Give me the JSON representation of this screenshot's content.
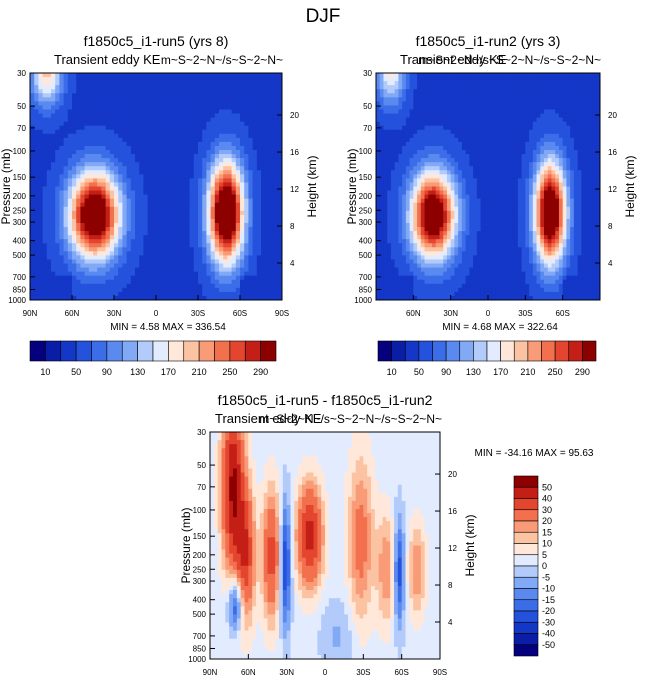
{
  "figure": {
    "title": "DJF"
  },
  "chart_data": [
    {
      "type": "heatmap",
      "title": "f1850c5_i1-run5 (yrs 8)",
      "subtitle_left": "Transient eddy KE",
      "subtitle_right": "m~S~2~N~/s~S~2~N~",
      "ylabel": "Pressure (mb)",
      "ylabel_right": "Height (km)",
      "xticks": [
        "90N",
        "60N",
        "30N",
        "0",
        "30S",
        "60S",
        "90S"
      ],
      "yticks": [
        "30",
        "50",
        "70",
        "100",
        "150",
        "200",
        "250",
        "300",
        "400",
        "500",
        "700",
        "850",
        "1000"
      ],
      "height_ticks": [
        "4",
        "8",
        "12",
        "16",
        "20"
      ],
      "stats": "MIN =  4.58  MAX = 336.54",
      "min": 4.58,
      "max": 336.54,
      "blobs": [
        {
          "lat": 44,
          "p": 270,
          "amp": 310,
          "slat": 13,
          "sp": 0.48
        },
        {
          "lat": -50,
          "p": 260,
          "amp": 330,
          "slat": 9,
          "sp": 0.55
        },
        {
          "lat": 78,
          "p": 30,
          "amp": 150,
          "slat": 8,
          "sp": 0.35
        }
      ],
      "background": 45
    },
    {
      "type": "heatmap",
      "title": "f1850c5_i1-run2 (yrs 3)",
      "subtitle_left": "Transient eddy KE",
      "subtitle_right": "m~S~2~N~/s~S~2~N~/s~S~2~N~",
      "ylabel": "Pressure (mb)",
      "ylabel_right": "Height (km)",
      "xticks": [
        "60N",
        "30N",
        "0",
        "30S",
        "60S"
      ],
      "yticks": [
        "30",
        "50",
        "70",
        "100",
        "150",
        "200",
        "250",
        "300",
        "400",
        "500",
        "700",
        "850",
        "1000"
      ],
      "height_ticks": [
        "4",
        "8",
        "12",
        "16",
        "20"
      ],
      "stats": "MIN =  4.68  MAX = 322.64",
      "min": 4.68,
      "max": 322.64,
      "blobs": [
        {
          "lat": 44,
          "p": 270,
          "amp": 300,
          "slat": 13,
          "sp": 0.48
        },
        {
          "lat": -50,
          "p": 260,
          "amp": 318,
          "slat": 9,
          "sp": 0.55
        },
        {
          "lat": 78,
          "p": 30,
          "amp": 130,
          "slat": 8,
          "sp": 0.35
        }
      ],
      "background": 45
    },
    {
      "type": "heatmap",
      "title": "f1850c5_i1-run5 - f1850c5_i1-run2",
      "subtitle_left": "Transient eddy KE",
      "subtitle_right": "m~S~2~N~/s~S~2~N~/s~S~2~N~",
      "ylabel": "Pressure (mb)",
      "ylabel_right": "Height (km)",
      "xticks": [
        "90N",
        "60N",
        "30N",
        "0",
        "30S",
        "60S",
        "90S"
      ],
      "yticks": [
        "30",
        "50",
        "70",
        "100",
        "150",
        "200",
        "250",
        "300",
        "400",
        "500",
        "700",
        "850",
        "1000"
      ],
      "height_ticks": [
        "4",
        "8",
        "12",
        "16",
        "20"
      ],
      "stats": "MIN = -34.16  MAX =  95.63",
      "min": -34.16,
      "max": 95.63,
      "blobs": [
        {
          "lat": 72,
          "p": 70,
          "amp": 50,
          "slat": 6,
          "sp": 0.9
        },
        {
          "lat": 62,
          "p": 200,
          "amp": 35,
          "slat": 5,
          "sp": 0.7
        },
        {
          "lat": 42,
          "p": 200,
          "amp": 32,
          "slat": 5,
          "sp": 0.7
        },
        {
          "lat": 12,
          "p": 150,
          "amp": 42,
          "slat": 7,
          "sp": 0.55
        },
        {
          "lat": -28,
          "p": 160,
          "amp": 22,
          "slat": 7,
          "sp": 0.9
        },
        {
          "lat": -48,
          "p": 250,
          "amp": 18,
          "slat": 5,
          "sp": 0.6
        },
        {
          "lat": -72,
          "p": 250,
          "amp": 18,
          "slat": 5,
          "sp": 0.5
        },
        {
          "lat": 70,
          "p": 430,
          "amp": -28,
          "slat": 4,
          "sp": 0.3
        },
        {
          "lat": 31,
          "p": 230,
          "amp": -30,
          "slat": 3,
          "sp": 0.7
        },
        {
          "lat": -58,
          "p": 260,
          "amp": -26,
          "slat": 3,
          "sp": 0.6
        },
        {
          "lat": -10,
          "p": 700,
          "amp": -8,
          "slat": 10,
          "sp": 0.4
        }
      ],
      "background": 2
    }
  ],
  "colorbars": {
    "main": {
      "labels": [
        "10",
        "50",
        "90",
        "130",
        "170",
        "210",
        "250",
        "290"
      ],
      "levels": [
        10,
        30,
        50,
        70,
        90,
        110,
        130,
        150,
        170,
        190,
        210,
        230,
        250,
        270,
        290
      ],
      "colors": [
        "#05007e",
        "#0a1da6",
        "#1537c8",
        "#2452dd",
        "#3c6de9",
        "#5a8af0",
        "#82a9f5",
        "#b3cbfa",
        "#e2ecfe",
        "#ffe8d9",
        "#fcc3a3",
        "#f99b76",
        "#f2704e",
        "#e3452e",
        "#c41f16",
        "#8c0000"
      ]
    },
    "diff": {
      "labels": [
        "50",
        "40",
        "30",
        "20",
        "15",
        "10",
        "5",
        "0",
        "-5",
        "-10",
        "-15",
        "-20",
        "-30",
        "-40",
        "-50"
      ],
      "levels": [
        -50,
        -40,
        -30,
        -20,
        -15,
        -10,
        -5,
        0,
        5,
        10,
        15,
        20,
        30,
        40,
        50
      ],
      "colors": [
        "#05007e",
        "#0a1da6",
        "#1537c8",
        "#2452dd",
        "#3c6de9",
        "#5a8af0",
        "#82a9f5",
        "#b3cbfa",
        "#e2ecfe",
        "#ffe8d9",
        "#fcc3a3",
        "#f99b76",
        "#f2704e",
        "#e3452e",
        "#c41f16",
        "#8c0000"
      ]
    }
  }
}
